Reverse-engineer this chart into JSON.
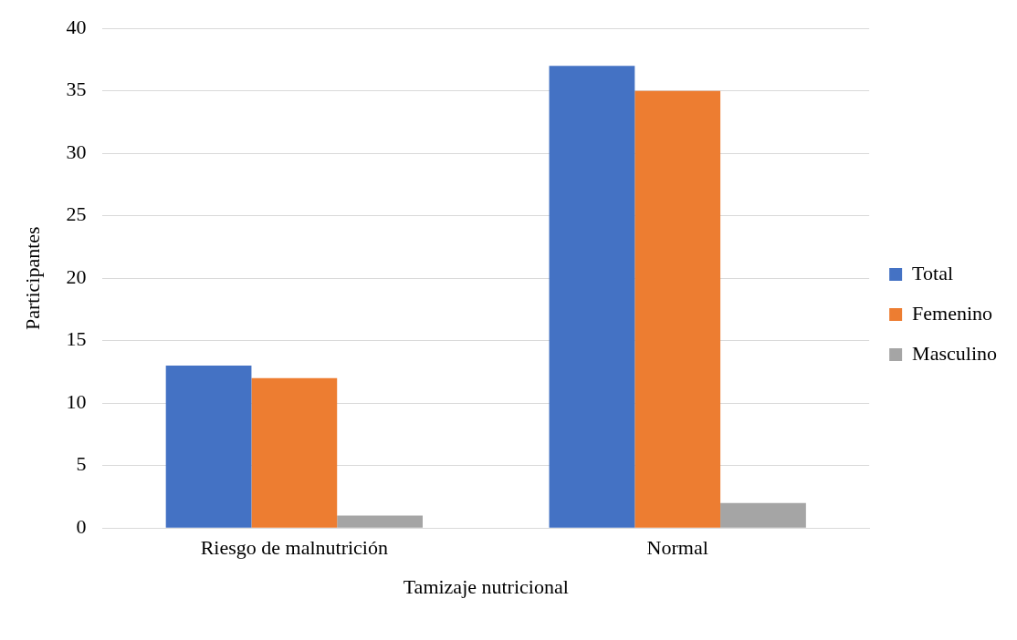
{
  "chart_data": {
    "type": "bar",
    "xlabel": "Tamizaje nutricional",
    "ylabel": "Participantes",
    "categories": [
      "Riesgo de malnutrición",
      "Normal"
    ],
    "series": [
      {
        "name": "Total",
        "color": "#4472c4",
        "values": [
          13,
          37
        ]
      },
      {
        "name": "Femenino",
        "color": "#ed7d31",
        "values": [
          12,
          35
        ]
      },
      {
        "name": "Masculino",
        "color": "#a5a5a5",
        "values": [
          1,
          2
        ]
      }
    ],
    "ylim": [
      0,
      40
    ],
    "yticks": [
      0,
      5,
      10,
      15,
      20,
      25,
      30,
      35,
      40
    ],
    "grid": "y",
    "legend": "right"
  }
}
